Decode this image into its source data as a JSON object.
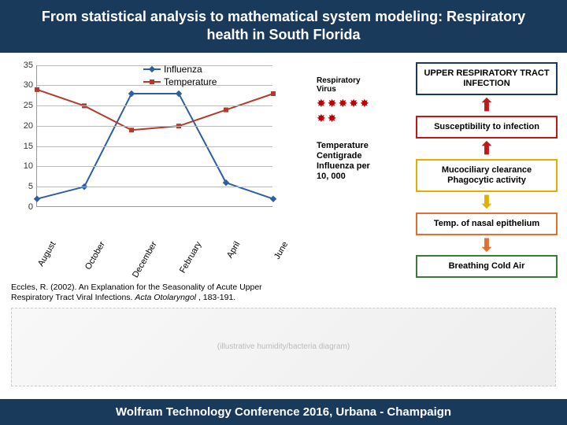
{
  "title": "From statistical analysis to mathematical system modeling: Respiratory health in South Florida",
  "footer": "Wolfram Technology Conference 2016, Urbana - Champaign",
  "chart": {
    "type": "line",
    "ylim": [
      0,
      35
    ],
    "ytick_step": 5,
    "grid_color": "#bbbbbb",
    "categories": [
      "August",
      "October",
      "December",
      "February",
      "April",
      "June"
    ],
    "series": [
      {
        "name": "Influenza",
        "color": "#2e5fa3",
        "marker": "diamond",
        "values": [
          2,
          5,
          28,
          28,
          6,
          2
        ]
      },
      {
        "name": "Temperature",
        "color": "#b23a2e",
        "marker": "square",
        "values": [
          29,
          25,
          19,
          20,
          24,
          28
        ]
      }
    ],
    "label_fontsize": 11,
    "line_width": 2
  },
  "legend": [
    {
      "label": "Influenza",
      "color": "#2e5fa3",
      "marker": "diamond"
    },
    {
      "label": "Temperature",
      "color": "#b23a2e",
      "marker": "square"
    }
  ],
  "annotation_lines": [
    "Temperature",
    "Centigrade",
    "Influenza per",
    "10, 000"
  ],
  "virus_label_lines": [
    "Respiratory",
    "Virus"
  ],
  "virus_color": "#c00000",
  "flow": [
    {
      "text": "UPPER RESPIRATORY TRACT INFECTION",
      "border": "#1a3a5c",
      "arrow_color": "#c01818"
    },
    {
      "text": "Susceptibility to infection",
      "border": "#c01818",
      "arrow_color": "#c01818"
    },
    {
      "text": "Mucociliary clearance Phagocytic activity",
      "border": "#e0b000",
      "arrow_color": "#e0b000",
      "arrow_dir": "down"
    },
    {
      "text": "Temp. of nasal epithelium",
      "border": "#e07030",
      "arrow_color": "#e07030",
      "arrow_dir": "down"
    },
    {
      "text": "Breathing Cold Air",
      "border": "#3a7a3a"
    }
  ],
  "citation": {
    "prefix": "Eccles, R. (2002). An Explanation for the Seasonality of Acute Upper Respiratory Tract Viral Infections. ",
    "ital": "Acta Otolaryngol",
    "suffix": ", 183-191."
  },
  "placeholder": "(illustrative humidity/bacteria diagram)"
}
